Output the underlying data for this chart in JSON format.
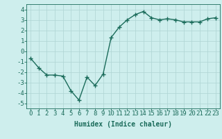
{
  "x": [
    0,
    1,
    2,
    3,
    4,
    5,
    6,
    7,
    8,
    9,
    10,
    11,
    12,
    13,
    14,
    15,
    16,
    17,
    18,
    19,
    20,
    21,
    22,
    23
  ],
  "y": [
    -0.7,
    -1.6,
    -2.3,
    -2.3,
    -2.4,
    -3.8,
    -4.7,
    -2.5,
    -3.3,
    -2.2,
    1.3,
    2.3,
    3.0,
    3.5,
    3.8,
    3.2,
    3.0,
    3.1,
    3.0,
    2.8,
    2.8,
    2.8,
    3.1,
    3.2
  ],
  "line_color": "#1a6b5a",
  "marker": "+",
  "markersize": 4,
  "markeredgewidth": 1.0,
  "linewidth": 1.0,
  "bg_color": "#ceeeed",
  "grid_color": "#aed4d3",
  "xlabel": "Humidex (Indice chaleur)",
  "xlabel_fontsize": 7,
  "tick_fontsize": 6.5,
  "xlim": [
    -0.5,
    23.5
  ],
  "ylim": [
    -5.5,
    4.5
  ],
  "yticks": [
    -5,
    -4,
    -3,
    -2,
    -1,
    0,
    1,
    2,
    3,
    4
  ],
  "xticks": [
    0,
    1,
    2,
    3,
    4,
    5,
    6,
    7,
    8,
    9,
    10,
    11,
    12,
    13,
    14,
    15,
    16,
    17,
    18,
    19,
    20,
    21,
    22,
    23
  ]
}
